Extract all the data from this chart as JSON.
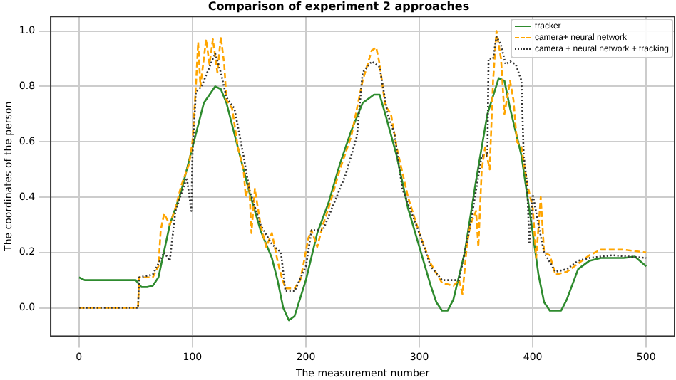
{
  "chart_data": {
    "type": "line",
    "title": "Comparison of experiment 2 approaches",
    "xlabel": "The measurement number",
    "ylabel": "The coordinates of the person",
    "xlim": [
      -25,
      525
    ],
    "xticks": [
      0,
      100,
      200,
      300,
      400,
      500
    ],
    "ylim": [
      -0.1025,
      1.0525
    ],
    "yticks": [
      {
        "value": 0,
        "label": "0.0"
      },
      {
        "value": 0.2,
        "label": "0.2"
      },
      {
        "value": 0.4,
        "label": "0.4"
      },
      {
        "value": 0.6,
        "label": "0.6"
      },
      {
        "value": 0.8,
        "label": "0.8"
      },
      {
        "value": 1,
        "label": "1.0"
      }
    ],
    "grid": true,
    "legend": "top right",
    "series": [
      {
        "name": "tracker",
        "color": "#2e8b2e",
        "line_style": "solid",
        "x": [
          0,
          5,
          15,
          20,
          50,
          55,
          60,
          65,
          70,
          80,
          90,
          100,
          110,
          120,
          125,
          130,
          140,
          150,
          160,
          170,
          175,
          180,
          185,
          190,
          200,
          210,
          220,
          230,
          240,
          250,
          260,
          265,
          270,
          280,
          290,
          300,
          310,
          315,
          320,
          325,
          330,
          340,
          350,
          360,
          370,
          375,
          380,
          390,
          400,
          405,
          410,
          415,
          425,
          430,
          440,
          450,
          460,
          480,
          490,
          500
        ],
        "values": [
          0.11,
          0.1,
          0.1,
          0.1,
          0.1,
          0.075,
          0.075,
          0.08,
          0.11,
          0.3,
          0.42,
          0.58,
          0.74,
          0.8,
          0.79,
          0.74,
          0.58,
          0.42,
          0.28,
          0.18,
          0.1,
          0.0,
          -0.045,
          -0.03,
          0.1,
          0.27,
          0.38,
          0.52,
          0.64,
          0.74,
          0.77,
          0.77,
          0.7,
          0.55,
          0.36,
          0.22,
          0.08,
          0.02,
          -0.01,
          -0.01,
          0.03,
          0.2,
          0.46,
          0.7,
          0.83,
          0.82,
          0.72,
          0.55,
          0.27,
          0.12,
          0.02,
          -0.01,
          -0.01,
          0.03,
          0.14,
          0.17,
          0.18,
          0.18,
          0.185,
          0.15
        ]
      },
      {
        "name": "camera+ neural network",
        "color": "#ffa500",
        "line_style": "dashed",
        "x": [
          0,
          52,
          53,
          65,
          70,
          72,
          75,
          80,
          85,
          90,
          97,
          100,
          103,
          105,
          107,
          110,
          112,
          115,
          118,
          122,
          125,
          128,
          130,
          135,
          140,
          145,
          147,
          150,
          152,
          155,
          160,
          165,
          170,
          175,
          178,
          182,
          190,
          195,
          198,
          202,
          205,
          210,
          215,
          220,
          230,
          240,
          250,
          258,
          262,
          265,
          270,
          275,
          280,
          290,
          300,
          310,
          320,
          330,
          335,
          338,
          342,
          345,
          350,
          352,
          355,
          358,
          362,
          365,
          368,
          372,
          375,
          380,
          383,
          386,
          390,
          395,
          400,
          403,
          407,
          410,
          415,
          420,
          430,
          440,
          450,
          460,
          480,
          500
        ],
        "values": [
          0,
          0,
          0.11,
          0.11,
          0.15,
          0.28,
          0.34,
          0.3,
          0.36,
          0.44,
          0.52,
          0.6,
          0.8,
          0.96,
          0.8,
          0.9,
          0.97,
          0.88,
          0.97,
          0.85,
          0.98,
          0.88,
          0.75,
          0.72,
          0.58,
          0.5,
          0.4,
          0.45,
          0.27,
          0.43,
          0.3,
          0.22,
          0.27,
          0.17,
          0.12,
          0.07,
          0.07,
          0.1,
          0.16,
          0.25,
          0.28,
          0.22,
          0.3,
          0.36,
          0.5,
          0.62,
          0.82,
          0.93,
          0.94,
          0.88,
          0.73,
          0.7,
          0.58,
          0.4,
          0.27,
          0.16,
          0.09,
          0.08,
          0.1,
          0.05,
          0.23,
          0.3,
          0.35,
          0.22,
          0.5,
          0.58,
          0.5,
          0.82,
          1.0,
          0.9,
          0.7,
          0.82,
          0.75,
          0.6,
          0.58,
          0.45,
          0.36,
          0.18,
          0.4,
          0.2,
          0.19,
          0.12,
          0.13,
          0.16,
          0.19,
          0.21,
          0.21,
          0.2
        ]
      },
      {
        "name": "camera + neural network + tracking",
        "color": "#333333",
        "line_style": "dotted",
        "x": [
          0,
          52,
          53,
          65,
          75,
          80,
          85,
          95,
          99,
          100,
          103,
          108,
          115,
          120,
          125,
          130,
          137,
          145,
          150,
          160,
          170,
          178,
          182,
          190,
          200,
          205,
          215,
          225,
          235,
          245,
          250,
          258,
          265,
          272,
          278,
          285,
          300,
          310,
          320,
          335,
          345,
          355,
          360,
          361,
          365,
          368,
          372,
          376,
          380,
          385,
          390,
          392,
          395,
          397,
          400,
          405,
          410,
          420,
          430,
          440,
          450,
          470,
          500
        ],
        "values": [
          0,
          0,
          0.11,
          0.12,
          0.2,
          0.17,
          0.35,
          0.47,
          0.35,
          0.55,
          0.78,
          0.8,
          0.87,
          0.92,
          0.85,
          0.76,
          0.72,
          0.55,
          0.43,
          0.3,
          0.23,
          0.2,
          0.06,
          0.06,
          0.15,
          0.28,
          0.28,
          0.38,
          0.48,
          0.62,
          0.85,
          0.89,
          0.87,
          0.7,
          0.63,
          0.43,
          0.27,
          0.15,
          0.1,
          0.1,
          0.3,
          0.55,
          0.55,
          0.9,
          0.9,
          0.98,
          0.95,
          0.88,
          0.89,
          0.88,
          0.82,
          0.55,
          0.45,
          0.23,
          0.41,
          0.3,
          0.2,
          0.13,
          0.14,
          0.17,
          0.18,
          0.19,
          0.18
        ]
      }
    ]
  }
}
